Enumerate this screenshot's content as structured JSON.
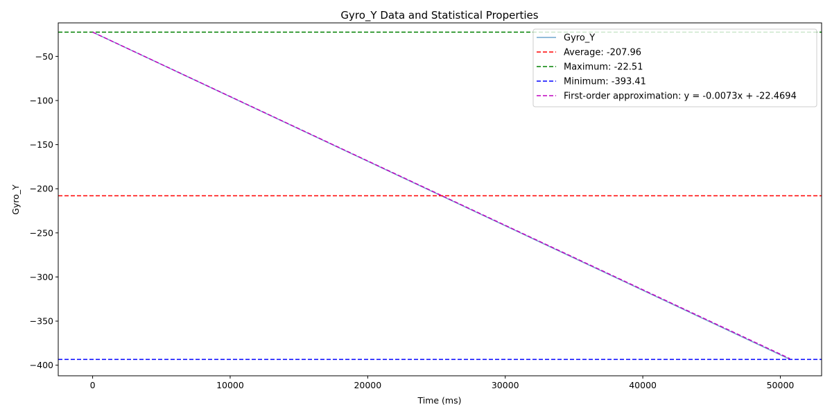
{
  "chart_data": {
    "type": "line",
    "title": "Gyro_Y Data and Statistical Properties",
    "xlabel": "Time (ms)",
    "ylabel": "Gyro_Y",
    "xlim": [
      -2500,
      53000
    ],
    "ylim": [
      -412,
      -12
    ],
    "xticks": [
      0,
      10000,
      20000,
      30000,
      40000,
      50000
    ],
    "yticks": [
      -50,
      -100,
      -150,
      -200,
      -250,
      -300,
      -350,
      -400
    ],
    "grid": false,
    "legend_position": "top-right",
    "series": [
      {
        "name": "Gyro_Y",
        "kind": "line",
        "style": "solid",
        "color": "#1f77b4",
        "x": [
          0,
          50700
        ],
        "y": [
          -22.51,
          -393.41
        ]
      },
      {
        "name": "Average: -207.96",
        "kind": "hline",
        "style": "dashed",
        "color": "#ff0000",
        "value": -207.96
      },
      {
        "name": "Maximum: -22.51",
        "kind": "hline",
        "style": "dashed",
        "color": "#008000",
        "value": -22.51
      },
      {
        "name": "Minimum: -393.41",
        "kind": "hline",
        "style": "dashed",
        "color": "#0000ff",
        "value": -393.41
      },
      {
        "name": "First-order approximation: y = -0.0073x + -22.4694",
        "kind": "fit",
        "style": "dashed",
        "color": "#bf00bf",
        "slope": -0.0073,
        "intercept": -22.4694,
        "x": [
          0,
          50700
        ]
      }
    ]
  }
}
